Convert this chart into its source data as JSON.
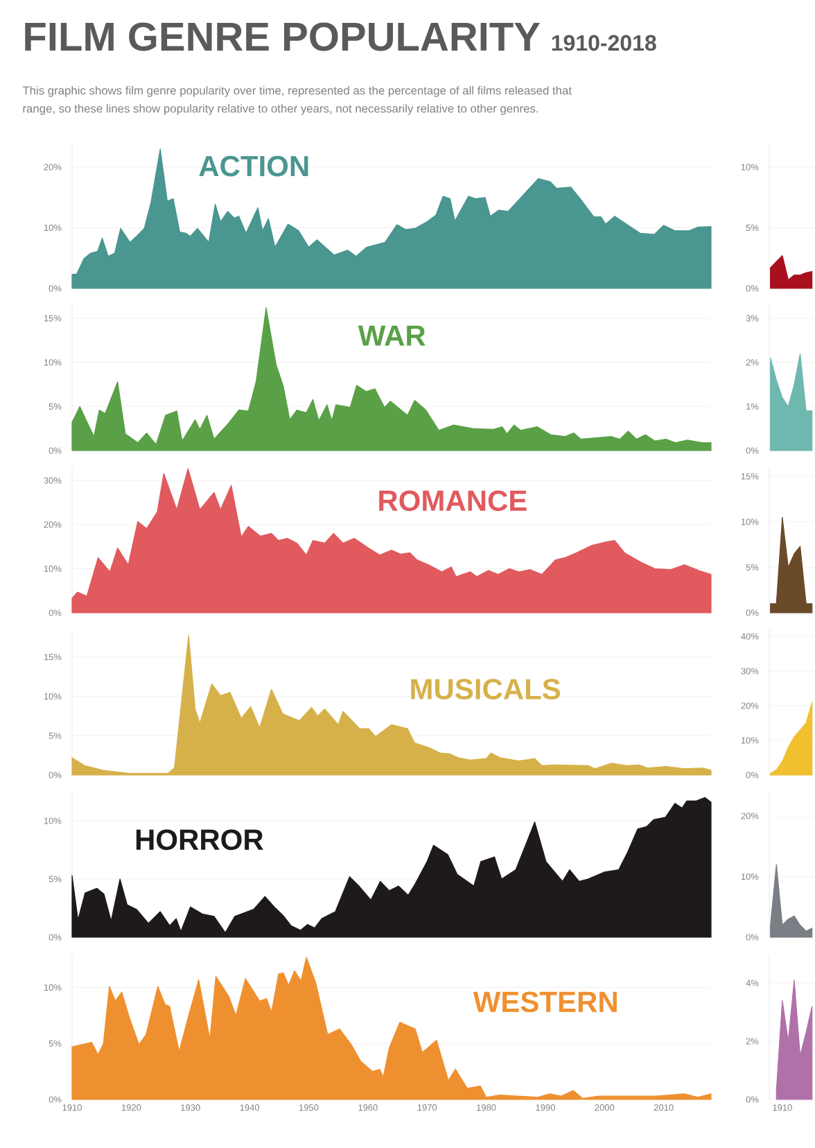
{
  "chart_data": [
    {
      "type": "area",
      "title": "FILM GENRE POPULARITY",
      "subtitle": "1910-2018",
      "annotations": [
        "This graphic shows film genre popularity over time, represented as the percentage of all films released that",
        "range, so these lines show popularity relative to other years, not necessarily relative to other genres."
      ],
      "xlim": [
        1910,
        2018
      ],
      "ylim": [
        0,
        24
      ],
      "yticks": [
        {
          "value": 0,
          "label": "0%"
        },
        {
          "value": 10,
          "label": "10%"
        },
        {
          "value": 20,
          "label": "20%"
        }
      ],
      "grid": "y",
      "tick_labels": "y",
      "series": [
        {
          "name": "ACTION",
          "color": "#4a9690",
          "x": [
            1910,
            1910.8,
            1912,
            1913.1,
            1914.3,
            1915.1,
            1916.1,
            1917.2,
            1918.2,
            1919.8,
            1921,
            1922.2,
            1923.3,
            1924.9,
            1926.1,
            1927.1,
            1928.2,
            1929.2,
            1930,
            1931.2,
            1933.1,
            1934.2,
            1935.1,
            1936.3,
            1937.4,
            1938.2,
            1939.4,
            1941.4,
            1942.2,
            1943.2,
            1944.3,
            1946.5,
            1948.3,
            1950,
            1951.4,
            1954.3,
            1956.6,
            1958,
            1959.8,
            1962.9,
            1964.9,
            1966.4,
            1968,
            1970,
            1971.5,
            1972.7,
            1973.9,
            1974.7,
            1977,
            1978.2,
            1979.8,
            1980.7,
            1982.1,
            1983.7,
            1985.7,
            1988.8,
            1990.8,
            1991.9,
            1994.3,
            1996.2,
            1998.2,
            1999.4,
            2000.2,
            2001.7,
            2003.7,
            2006,
            2008.4,
            2010,
            2011.9,
            2014.3,
            2015.8,
            2018
          ],
          "values": [
            2.3,
            2.4,
            4.9,
            5.8,
            6.1,
            8.3,
            5.3,
            5.8,
            9.9,
            7.6,
            8.7,
            9.9,
            14.0,
            23.0,
            14.4,
            14.8,
            9.3,
            9.1,
            8.6,
            9.9,
            7.6,
            13.9,
            11.0,
            12.7,
            11.6,
            11.9,
            9.1,
            13.3,
            9.5,
            11.5,
            6.8,
            10.6,
            9.5,
            6.8,
            8.0,
            5.5,
            6.3,
            5.3,
            6.8,
            7.6,
            10.5,
            9.7,
            9.9,
            11.0,
            12.1,
            15.2,
            14.8,
            11.1,
            15.2,
            14.8,
            15.0,
            11.9,
            12.9,
            12.7,
            14.8,
            18.1,
            17.6,
            16.5,
            16.7,
            14.4,
            11.8,
            11.8,
            10.6,
            11.9,
            10.6,
            9.1,
            8.9,
            10.4,
            9.5,
            9.5,
            10.1,
            10.2
          ]
        }
      ]
    },
    {
      "type": "area",
      "xlim": [
        1910,
        2018
      ],
      "ylim": [
        0,
        16.5
      ],
      "yticks": [
        {
          "value": 0,
          "label": "0%"
        },
        {
          "value": 5,
          "label": "5%"
        },
        {
          "value": 10,
          "label": "10%"
        },
        {
          "value": 15,
          "label": "15%"
        }
      ],
      "grid": "y",
      "tick_labels": "y",
      "series": [
        {
          "name": "WAR",
          "color": "#5aa047",
          "x": [
            1910,
            1911.3,
            1913.7,
            1914.6,
            1915.6,
            1917.7,
            1919,
            1921.1,
            1922.6,
            1924.2,
            1925.8,
            1927.7,
            1928.6,
            1930.8,
            1931.6,
            1932.8,
            1934,
            1936.3,
            1938.2,
            1939.8,
            1941.1,
            1942.8,
            1944.5,
            1945.7,
            1946.8,
            1948,
            1949.6,
            1950.7,
            1951.7,
            1953.1,
            1953.9,
            1954.6,
            1957,
            1958.1,
            1959.7,
            1961.2,
            1962.8,
            1963.8,
            1966.7,
            1967.9,
            1969.8,
            1972,
            1974.5,
            1977.7,
            1981.2,
            1982.7,
            1983.5,
            1984.7,
            1985.8,
            1988.6,
            1990.9,
            1993.3,
            1994.8,
            1996,
            1999.5,
            2001.1,
            2002.6,
            2004,
            2005.4,
            2006.9,
            2008.5,
            2010.4,
            2012,
            2014,
            2016.6,
            2018
          ],
          "values": [
            3.2,
            5.0,
            1.6,
            4.6,
            4.2,
            7.8,
            1.9,
            0.9,
            2.0,
            0.7,
            4.0,
            4.5,
            1.1,
            3.5,
            2.4,
            4.0,
            1.3,
            3.0,
            4.6,
            4.5,
            7.8,
            16.2,
            9.7,
            7.3,
            3.5,
            4.6,
            4.3,
            5.8,
            3.4,
            5.2,
            3.4,
            5.2,
            4.9,
            7.4,
            6.7,
            7.0,
            4.9,
            5.6,
            4.0,
            5.7,
            4.6,
            2.3,
            2.9,
            2.5,
            2.4,
            2.7,
            1.9,
            2.9,
            2.3,
            2.7,
            1.8,
            1.6,
            2.0,
            1.3,
            1.5,
            1.6,
            1.3,
            2.2,
            1.3,
            1.8,
            1.1,
            1.3,
            0.9,
            1.2,
            0.9,
            0.9
          ]
        }
      ]
    },
    {
      "type": "area",
      "xlim": [
        1910,
        2018
      ],
      "ylim": [
        0,
        33
      ],
      "yticks": [
        {
          "value": 0,
          "label": "0%"
        },
        {
          "value": 10,
          "label": "10%"
        },
        {
          "value": 20,
          "label": "20%"
        },
        {
          "value": 30,
          "label": "30%"
        }
      ],
      "grid": "y",
      "tick_labels": "y",
      "series": [
        {
          "name": "ROMANCE",
          "color": "#e05a5e",
          "x": [
            1910,
            1910.9,
            1912.5,
            1914.4,
            1916.4,
            1917.7,
            1919.5,
            1921.1,
            1922.6,
            1924.4,
            1925.5,
            1927.7,
            1929.6,
            1931.6,
            1934,
            1935.1,
            1936.9,
            1938.6,
            1939.8,
            1941.8,
            1943.7,
            1944.9,
            1946.4,
            1948,
            1949.6,
            1950.7,
            1952.7,
            1954.2,
            1955.8,
            1957.7,
            1960.1,
            1962,
            1964,
            1965.5,
            1967.1,
            1968.3,
            1970.2,
            1972.5,
            1974.1,
            1974.9,
            1977.3,
            1978.4,
            1980.4,
            1982,
            1983.9,
            1985.5,
            1987.4,
            1989.4,
            1991.7,
            1993.3,
            1995.2,
            1997.9,
            2000.3,
            2001.7,
            2003.4,
            2006.1,
            2008.5,
            2011.2,
            2013.5,
            2015.9,
            2018
          ],
          "values": [
            3.3,
            4.7,
            3.8,
            12.5,
            9.3,
            14.7,
            10.9,
            20.7,
            19.1,
            22.9,
            31.6,
            23.4,
            32.7,
            23.4,
            27.3,
            23.4,
            28.9,
            17.2,
            19.6,
            17.4,
            18.0,
            16.4,
            16.9,
            15.8,
            13.1,
            16.4,
            15.8,
            18.0,
            15.8,
            16.9,
            14.7,
            13.1,
            14.2,
            13.3,
            13.6,
            12.0,
            10.9,
            9.3,
            10.4,
            8.2,
            9.3,
            8.2,
            9.6,
            8.7,
            10.0,
            9.3,
            9.8,
            8.7,
            12.0,
            12.5,
            13.6,
            15.3,
            16.1,
            16.4,
            13.6,
            11.5,
            10.0,
            9.8,
            10.9,
            9.6,
            8.7
          ]
        }
      ]
    },
    {
      "type": "area",
      "xlim": [
        1910,
        2018
      ],
      "ylim": [
        0,
        18.5
      ],
      "yticks": [
        {
          "value": 0,
          "label": "0%"
        },
        {
          "value": 5,
          "label": "5%"
        },
        {
          "value": 10,
          "label": "10%"
        },
        {
          "value": 15,
          "label": "15%"
        }
      ],
      "grid": "y",
      "tick_labels": "y",
      "series": [
        {
          "name": "MUSICALS",
          "color": "#d6b14a",
          "x": [
            1910,
            1912.1,
            1915.2,
            1919.9,
            1926.2,
            1927.3,
            1929.7,
            1930.8,
            1931.6,
            1933.6,
            1935.1,
            1936.7,
            1938.6,
            1940.2,
            1941.7,
            1943.7,
            1945.6,
            1948.4,
            1950.5,
            1951.5,
            1952.7,
            1955,
            1955.8,
            1958.6,
            1960.1,
            1961.3,
            1964,
            1966.7,
            1967.9,
            1970.6,
            1972.2,
            1973.8,
            1975.3,
            1977.3,
            1980,
            1980.8,
            1982.4,
            1985.5,
            1988.2,
            1989.4,
            1991.7,
            1997.2,
            1998.4,
            2001.1,
            2003.8,
            2005.8,
            2007.3,
            2010.4,
            2013.5,
            2016.6,
            2018
          ],
          "values": [
            2.2,
            1.2,
            0.6,
            0.2,
            0.2,
            0.9,
            17.8,
            8.4,
            6.6,
            11.6,
            10.1,
            10.5,
            7.2,
            8.7,
            6.0,
            10.9,
            7.8,
            6.9,
            8.6,
            7.5,
            8.4,
            6.4,
            8.1,
            5.9,
            5.9,
            4.9,
            6.4,
            5.9,
            4.1,
            3.4,
            2.8,
            2.7,
            2.2,
            1.9,
            2.1,
            2.8,
            2.2,
            1.8,
            2.1,
            1.2,
            1.3,
            1.2,
            0.8,
            1.5,
            1.2,
            1.3,
            0.9,
            1.1,
            0.8,
            0.9,
            0.6
          ]
        }
      ]
    },
    {
      "type": "area",
      "xlim": [
        1910,
        2018
      ],
      "ylim": [
        0,
        12.5
      ],
      "yticks": [
        {
          "value": 0,
          "label": "0%"
        },
        {
          "value": 5,
          "label": "5%"
        },
        {
          "value": 10,
          "label": "10%"
        }
      ],
      "grid": "y",
      "tick_labels": "y",
      "series": [
        {
          "name": "HORROR",
          "color": "#1e1a1a",
          "x": [
            1910,
            1911,
            1912.2,
            1914.2,
            1915.4,
            1916.6,
            1918.1,
            1919.3,
            1920.9,
            1922.9,
            1924.9,
            1926.5,
            1927.6,
            1928.4,
            1930,
            1932,
            1934,
            1935.9,
            1937.5,
            1940.7,
            1942.6,
            1944.2,
            1945.8,
            1947,
            1948.6,
            1949.8,
            1951,
            1952.2,
            1954.5,
            1956.9,
            1958.5,
            1960.5,
            1962.1,
            1963.6,
            1965.2,
            1966.8,
            1968,
            1970,
            1971.1,
            1973.5,
            1975.1,
            1977.9,
            1979.1,
            1981.4,
            1982.6,
            1985,
            1988.2,
            1990.1,
            1992.9,
            1994.1,
            1995.7,
            1997.2,
            2000,
            2002.4,
            2003.9,
            2005.6,
            2007.1,
            2008.3,
            2010.3,
            2011.9,
            2013.1,
            2013.9,
            2015.5,
            2017,
            2018
          ],
          "values": [
            5.3,
            1.5,
            3.8,
            4.2,
            3.7,
            1.4,
            5.0,
            2.8,
            2.4,
            1.2,
            2.2,
            1.0,
            1.6,
            0.5,
            2.6,
            2.0,
            1.8,
            0.4,
            1.8,
            2.4,
            3.5,
            2.6,
            1.8,
            1.0,
            0.6,
            1.1,
            0.8,
            1.6,
            2.2,
            5.2,
            4.4,
            3.2,
            4.8,
            4.0,
            4.4,
            3.6,
            4.6,
            6.5,
            7.9,
            7.1,
            5.4,
            4.4,
            6.5,
            6.9,
            5.0,
            5.8,
            9.9,
            6.5,
            4.8,
            5.8,
            4.8,
            5.0,
            5.6,
            5.8,
            7.3,
            9.3,
            9.5,
            10.1,
            10.3,
            11.5,
            11.1,
            11.7,
            11.7,
            12.0,
            11.6
          ]
        }
      ]
    },
    {
      "type": "area",
      "xlim": [
        1910,
        2018
      ],
      "ylim": [
        0,
        13
      ],
      "yticks": [
        {
          "value": 0,
          "label": "0%"
        },
        {
          "value": 5,
          "label": "5%"
        },
        {
          "value": 10,
          "label": "10%"
        }
      ],
      "xticks": [
        1910,
        1920,
        1930,
        1940,
        1950,
        1960,
        1970,
        1980,
        1990,
        2000,
        2010
      ],
      "grid": "y",
      "series": [
        {
          "name": "WESTERN",
          "color": "#ef9030",
          "x": [
            1910,
            1913.3,
            1914.4,
            1915.3,
            1916.3,
            1917.3,
            1918.4,
            1919.7,
            1921.3,
            1922.5,
            1924.5,
            1925.7,
            1926.5,
            1928.1,
            1929.7,
            1931.4,
            1933.3,
            1934.3,
            1936.5,
            1937.7,
            1939.3,
            1941.7,
            1942.9,
            1943.7,
            1944.9,
            1945.7,
            1946.6,
            1947.6,
            1948.7,
            1949.6,
            1951.2,
            1953.2,
            1955.2,
            1957.2,
            1958.8,
            1960.8,
            1962,
            1962.6,
            1963.6,
            1965.4,
            1968,
            1969.2,
            1971.6,
            1973.6,
            1974.8,
            1976.8,
            1979,
            1980,
            1982.3,
            1988.7,
            1990.7,
            1992.7,
            1994.7,
            1996.3,
            1999.1,
            2003.9,
            2008.7,
            2013.5,
            2015.8,
            2018
          ],
          "values": [
            4.7,
            5.1,
            4.0,
            5.0,
            10.1,
            8.8,
            9.6,
            7.3,
            4.9,
            5.8,
            10.1,
            8.5,
            8.3,
            4.3,
            7.5,
            10.7,
            5.4,
            11.0,
            9.2,
            7.5,
            10.8,
            8.8,
            9.0,
            7.8,
            11.2,
            11.3,
            10.2,
            11.5,
            10.6,
            12.7,
            10.4,
            5.8,
            6.3,
            4.9,
            3.4,
            2.5,
            2.7,
            2.0,
            4.6,
            6.9,
            6.3,
            4.2,
            5.3,
            1.7,
            2.7,
            1.0,
            1.2,
            0.2,
            0.4,
            0.2,
            0.5,
            0.3,
            0.8,
            0.1,
            0.3,
            0.3,
            0.3,
            0.5,
            0.2,
            0.5
          ]
        }
      ]
    },
    {
      "type": "area",
      "categories": [
        null,
        null,
        null,
        null,
        null,
        null,
        null,
        null
      ],
      "ylim": [
        0,
        12
      ],
      "yticks": [
        {
          "value": 0,
          "label": "0%"
        },
        {
          "value": 5,
          "label": "5%"
        },
        {
          "value": 10,
          "label": "10%"
        }
      ],
      "grid": "y",
      "tick_labels": "y",
      "series": [
        {
          "color": "#a8101e",
          "values": [
            1.7,
            2.2,
            2.7,
            0.7,
            1.1,
            1.1,
            1.3,
            1.4
          ]
        }
      ]
    },
    {
      "type": "area",
      "categories": [
        null,
        null,
        null,
        null,
        null,
        null,
        null,
        null
      ],
      "ylim": [
        0,
        3.3
      ],
      "yticks": [
        {
          "value": 0,
          "label": "0%"
        },
        {
          "value": 1,
          "label": "1%"
        },
        {
          "value": 2,
          "label": "2%"
        },
        {
          "value": 3,
          "label": "3%"
        }
      ],
      "grid": "y",
      "tick_labels": "y",
      "series": [
        {
          "color": "#6fb8b0",
          "values": [
            2.1,
            1.6,
            1.2,
            1.0,
            1.5,
            2.2,
            0.9,
            0.9
          ]
        }
      ]
    },
    {
      "type": "area",
      "categories": [
        null,
        null,
        null,
        null,
        null,
        null,
        null,
        null
      ],
      "ylim": [
        0,
        16
      ],
      "yticks": [
        {
          "value": 0,
          "label": "0%"
        },
        {
          "value": 5,
          "label": "5%"
        },
        {
          "value": 10,
          "label": "10%"
        },
        {
          "value": 15,
          "label": "15%"
        }
      ],
      "grid": "y",
      "tick_labels": "y",
      "series": [
        {
          "color": "#6b4a2a",
          "values": [
            1.0,
            1.0,
            10.5,
            5.0,
            6.5,
            7.3,
            1.0,
            1.0
          ]
        }
      ]
    },
    {
      "type": "area",
      "categories": [
        null,
        null,
        null,
        null,
        null,
        null,
        null,
        null
      ],
      "ylim": [
        0,
        42
      ],
      "yticks": [
        {
          "value": 0,
          "label": "0%"
        },
        {
          "value": 10,
          "label": "10%"
        },
        {
          "value": 20,
          "label": "20%"
        },
        {
          "value": 30,
          "label": "30%"
        },
        {
          "value": 40,
          "label": "40%"
        }
      ],
      "grid": "y",
      "tick_labels": "y",
      "series": [
        {
          "color": "#f0c030",
          "values": [
            0.5,
            1.5,
            4,
            8,
            11,
            13,
            15,
            21
          ]
        }
      ]
    },
    {
      "type": "area",
      "categories": [
        null,
        null,
        null,
        null,
        null,
        null,
        null,
        null
      ],
      "ylim": [
        0,
        24
      ],
      "yticks": [
        {
          "value": 0,
          "label": "0%"
        },
        {
          "value": 10,
          "label": "10%"
        },
        {
          "value": 20,
          "label": "20%"
        }
      ],
      "grid": "y",
      "tick_labels": "y",
      "series": [
        {
          "color": "#7a7f86",
          "values": [
            2,
            12,
            2,
            3,
            3.5,
            2,
            1,
            1.5
          ]
        }
      ]
    },
    {
      "type": "area",
      "categories": [
        null,
        null,
        "1910",
        null,
        null,
        null,
        null,
        null
      ],
      "ylim": [
        0,
        5
      ],
      "yticks": [
        {
          "value": 0,
          "label": "0%"
        },
        {
          "value": 2,
          "label": "2%"
        },
        {
          "value": 4,
          "label": "4%"
        }
      ],
      "grid": "y",
      "series": [
        {
          "color": "#b070a8",
          "values": [
            null,
            0.3,
            3.4,
            2.0,
            4.1,
            1.5,
            2.3,
            3.2
          ]
        }
      ]
    }
  ]
}
